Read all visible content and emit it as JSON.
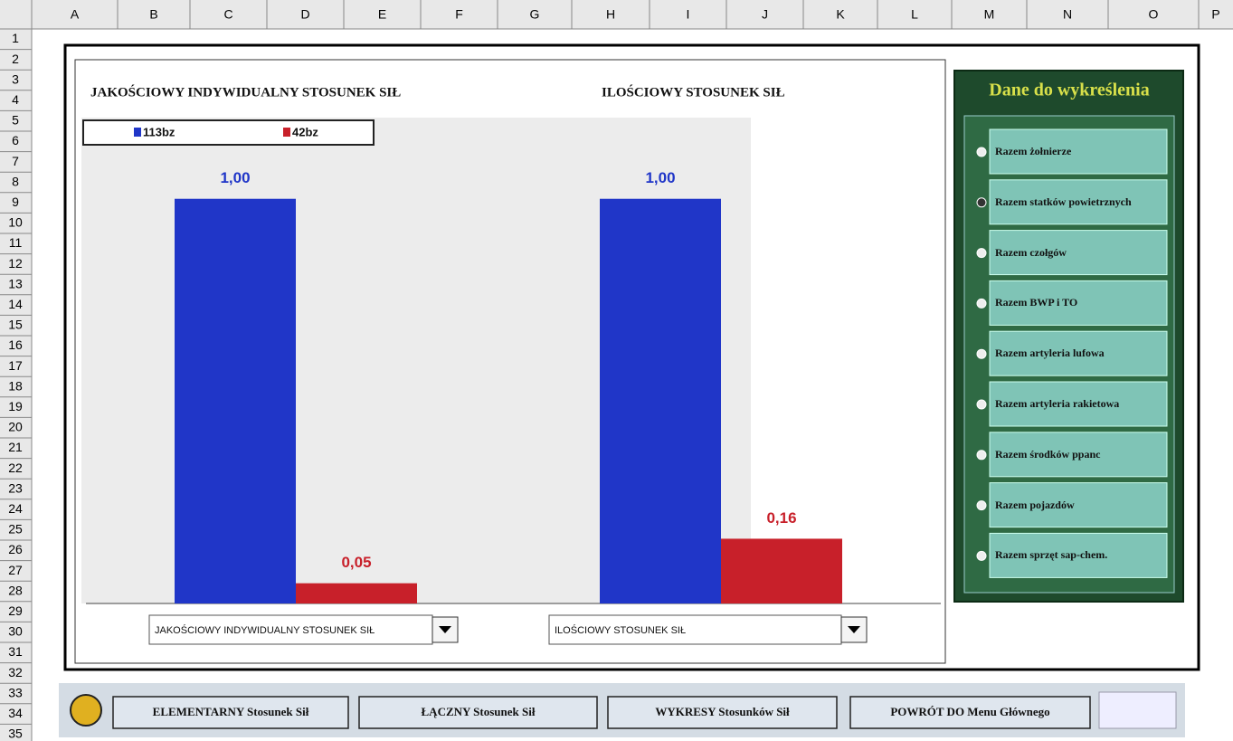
{
  "columns": [
    "A",
    "B",
    "C",
    "D",
    "E",
    "F",
    "G",
    "H",
    "I",
    "J",
    "K",
    "L",
    "M",
    "N",
    "O",
    "P"
  ],
  "rows": [
    1,
    2,
    3,
    4,
    5,
    6,
    7,
    8,
    9,
    10,
    11,
    12,
    13,
    14,
    15,
    16,
    17,
    18,
    19,
    20,
    21,
    22,
    23,
    24,
    25,
    26,
    27,
    28,
    29,
    30,
    31,
    32,
    33,
    34,
    35
  ],
  "chart_data": [
    {
      "type": "bar",
      "title": "JAKOŚCIOWY INDYWIDUALNY STOSUNEK SIŁ",
      "legend": "top-left",
      "categories": [
        null
      ],
      "ylim": [
        0,
        1.1
      ],
      "series": [
        {
          "name": "113bz",
          "color": "#2036c8",
          "values": [
            1.0
          ],
          "value_labels": [
            "1,00"
          ]
        },
        {
          "name": "42bz",
          "color": "#c8202a",
          "values": [
            0.05
          ],
          "value_labels": [
            "0,05"
          ]
        }
      ]
    },
    {
      "type": "bar",
      "title": "ILOŚCIOWY STOSUNEK SIŁ",
      "categories": [
        null
      ],
      "ylim": [
        0,
        1.1
      ],
      "series": [
        {
          "color": "#2036c8",
          "values": [
            1.0
          ],
          "value_labels": [
            "1,00"
          ]
        },
        {
          "color": "#c8202a",
          "values": [
            0.16
          ],
          "value_labels": [
            "0,16"
          ]
        }
      ]
    }
  ],
  "dropdowns": [
    "JAKOŚCIOWY INDYWIDUALNY STOSUNEK SIŁ",
    "ILOŚCIOWY STOSUNEK SIŁ"
  ],
  "panel": {
    "title": "Dane do wykreślenia",
    "options": [
      "Razem żołnierze",
      "Razem statków powietrznych",
      "Razem czołgów",
      "Razem BWP i TO",
      "Razem artyleria lufowa",
      "Razem artyleria rakietowa",
      "Razem środków ppanc",
      "Razem pojazdów",
      "Razem sprzęt sap-chem."
    ]
  },
  "buttons": [
    "ELEMENTARNY Stosunek Sił",
    "ŁĄCZNY Stosunek Sił",
    "WYKRESY Stosunków Sił",
    "POWRÓT DO Menu Głównego"
  ]
}
